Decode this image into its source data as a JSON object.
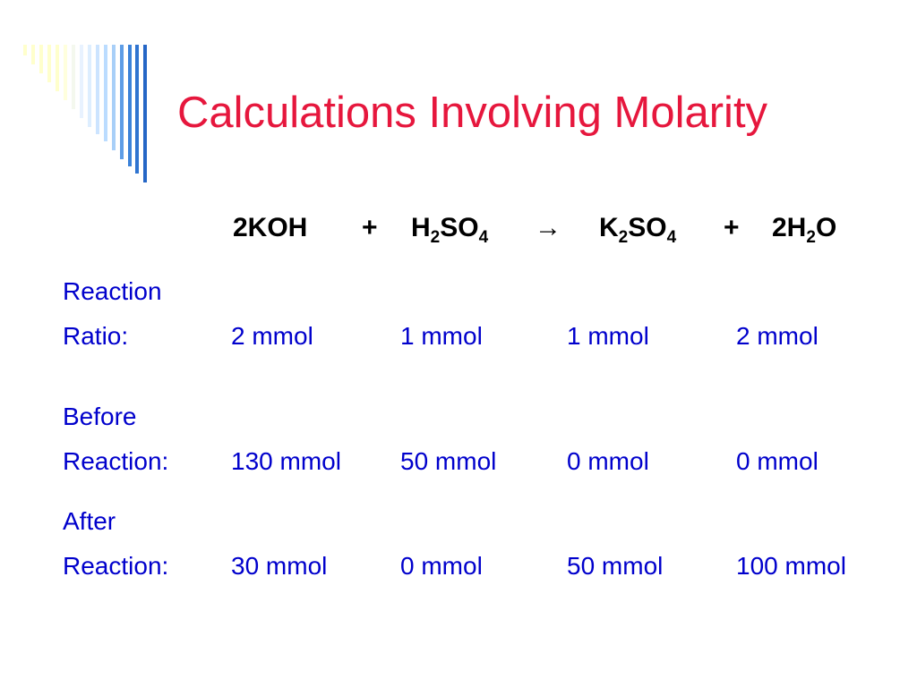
{
  "title": "Calculations Involving Molarity",
  "equation": [
    [
      "2KOH"
    ],
    [
      "+"
    ],
    [
      "H",
      "2",
      "SO",
      "4"
    ],
    [
      "→"
    ],
    [
      "K",
      "2",
      "SO",
      "4"
    ],
    [
      "+"
    ],
    [
      "2H",
      "2",
      "O"
    ]
  ],
  "rows": [
    {
      "label": [
        "Reaction",
        "Ratio:"
      ],
      "values": [
        "2 mmol",
        "1 mmol",
        "1 mmol",
        "2 mmol"
      ]
    },
    {
      "label": [
        "Before",
        "Reaction:"
      ],
      "values": [
        "130 mmol",
        "50 mmol",
        "0 mmol",
        "0 mmol"
      ]
    },
    {
      "label": [
        "After",
        "Reaction:"
      ],
      "values": [
        "30 mmol",
        "0 mmol",
        "50 mmol",
        "100 mmol"
      ]
    }
  ]
}
